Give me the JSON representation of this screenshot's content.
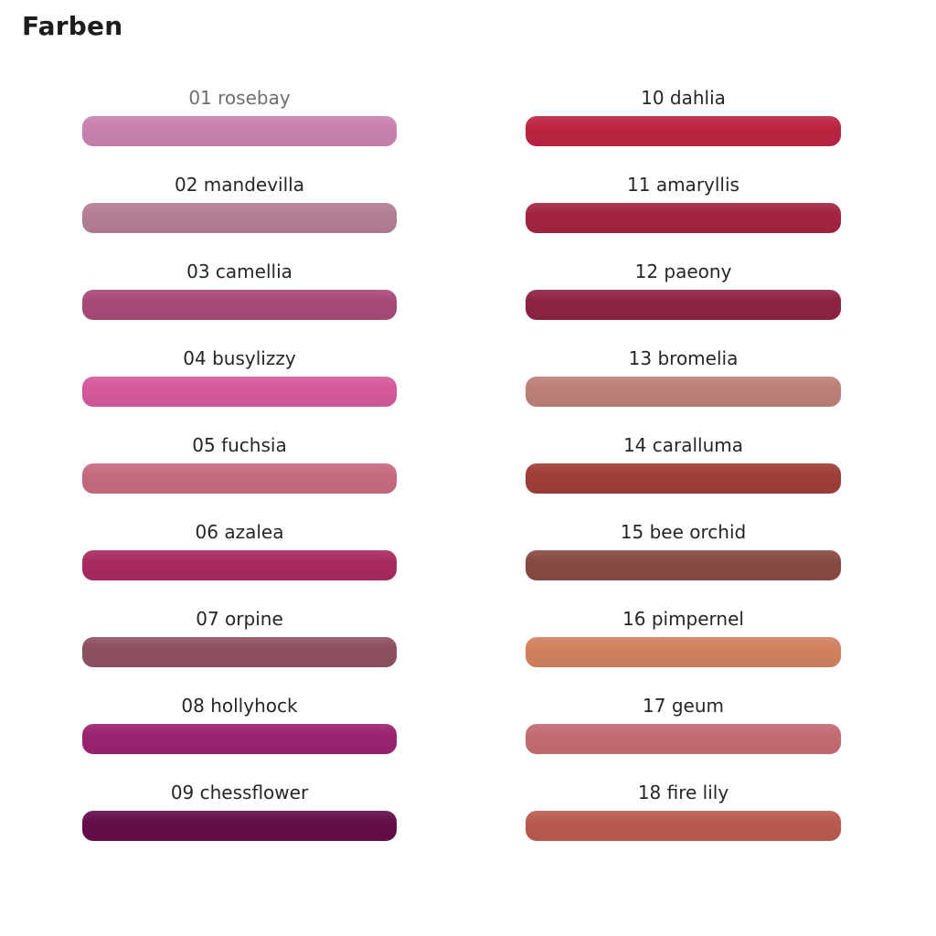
{
  "title": "Farben",
  "palette": {
    "columns": [
      {
        "name": "left",
        "items": [
          {
            "id": "01",
            "label": "01 rosebay",
            "color": "#c981ae",
            "label_color": "#6f6f6f"
          },
          {
            "id": "02",
            "label": "02 mandevilla",
            "color": "#b27e93",
            "label_color": "#262626"
          },
          {
            "id": "03",
            "label": "03 camellia",
            "color": "#a84a78",
            "label_color": "#262626"
          },
          {
            "id": "04",
            "label": "04 busylizzy",
            "color": "#d4599b",
            "label_color": "#262626"
          },
          {
            "id": "05",
            "label": "05 fuchsia",
            "color": "#c56a81",
            "label_color": "#262626"
          },
          {
            "id": "06",
            "label": "06 azalea",
            "color": "#a92a5f",
            "label_color": "#262626"
          },
          {
            "id": "07",
            "label": "07 orpine",
            "color": "#8e5061",
            "label_color": "#262626"
          },
          {
            "id": "08",
            "label": "08 hollyhock",
            "color": "#9a2270",
            "label_color": "#262626"
          },
          {
            "id": "09",
            "label": "09 chessflower",
            "color": "#650d49",
            "label_color": "#262626"
          }
        ]
      },
      {
        "name": "right",
        "items": [
          {
            "id": "10",
            "label": "10 dahlia",
            "color": "#bb2441",
            "label_color": "#262626"
          },
          {
            "id": "11",
            "label": "11 amaryllis",
            "color": "#a3243f",
            "label_color": "#262626"
          },
          {
            "id": "12",
            "label": "12 paeony",
            "color": "#8e2343",
            "label_color": "#262626"
          },
          {
            "id": "13",
            "label": "13 bromelia",
            "color": "#bb7f76",
            "label_color": "#262626"
          },
          {
            "id": "14",
            "label": "14 caralluma",
            "color": "#9e3e38",
            "label_color": "#262626"
          },
          {
            "id": "15",
            "label": "15 bee orchid",
            "color": "#884a43",
            "label_color": "#262626"
          },
          {
            "id": "16",
            "label": "16 pimpernel",
            "color": "#d0815f",
            "label_color": "#262626"
          },
          {
            "id": "17",
            "label": "17 geum",
            "color": "#c26b72",
            "label_color": "#262626"
          },
          {
            "id": "18",
            "label": "18 fire lily",
            "color": "#b95b4e",
            "label_color": "#262626"
          }
        ]
      }
    ]
  }
}
